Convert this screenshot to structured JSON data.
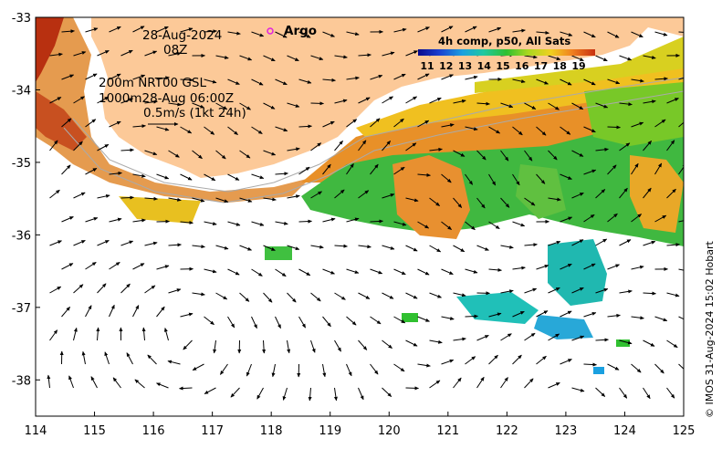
{
  "map": {
    "date": "28-Aug-2024",
    "time": "08Z",
    "line1": "200m  NRT00 GSL",
    "line2": "1000m28-Aug 06:00Z",
    "line3": "0.5m/s (1kt 24h)",
    "argo_label": "Argo",
    "colorbar": {
      "title": "4h comp, p50, All Sats",
      "ticks": [
        "11",
        "12",
        "13",
        "14",
        "15",
        "16",
        "17",
        "18",
        "19"
      ],
      "colors": [
        "#0a0a8c",
        "#1a3fd0",
        "#1aa0e0",
        "#20c8a0",
        "#30c030",
        "#a8d820",
        "#f0d020",
        "#f08020",
        "#c83010"
      ]
    },
    "x_axis": {
      "ticks": [
        "114",
        "115",
        "116",
        "117",
        "118",
        "119",
        "120",
        "121",
        "122",
        "123",
        "124",
        "125"
      ],
      "range": [
        114,
        125
      ]
    },
    "y_axis": {
      "ticks": [
        "-33",
        "-34",
        "-35",
        "-36",
        "-37",
        "-38"
      ],
      "range": [
        -38.5,
        -33
      ]
    },
    "copyright": "© IMOS 31-Aug-2024 15:02 Hobart",
    "colors": {
      "land": "#fcc998",
      "arrow": "#000000",
      "contour": "#aaaaaa"
    }
  }
}
